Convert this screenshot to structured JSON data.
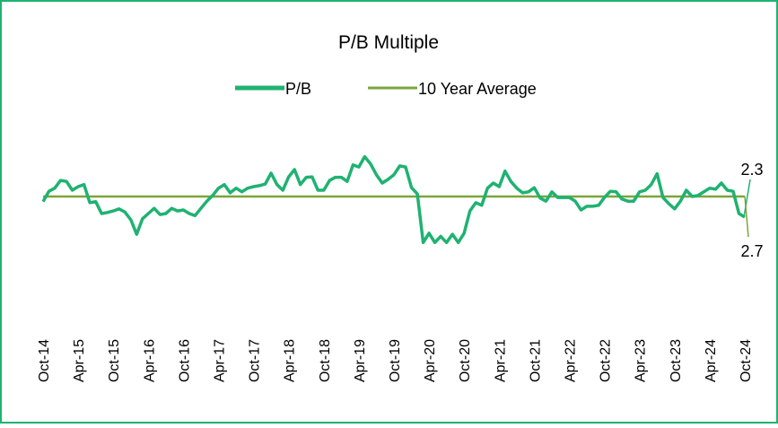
{
  "chart_data": {
    "type": "line",
    "title": "P/B Multiple",
    "categories": [
      "Oct-14",
      null,
      null,
      null,
      null,
      null,
      "Apr-15",
      null,
      null,
      null,
      null,
      null,
      "Oct-15",
      null,
      null,
      null,
      null,
      null,
      "Apr-16",
      null,
      null,
      null,
      null,
      null,
      "Oct-16",
      null,
      null,
      null,
      null,
      null,
      "Apr-17",
      null,
      null,
      null,
      null,
      null,
      "Oct-17",
      null,
      null,
      null,
      null,
      null,
      "Apr-18",
      null,
      null,
      null,
      null,
      null,
      "Oct-18",
      null,
      null,
      null,
      null,
      null,
      "Apr-19",
      null,
      null,
      null,
      null,
      null,
      "Oct-19",
      null,
      null,
      null,
      null,
      null,
      "Apr-20",
      null,
      null,
      null,
      null,
      null,
      "Oct-20",
      null,
      null,
      null,
      null,
      null,
      "Apr-21",
      null,
      null,
      null,
      null,
      null,
      "Oct-21",
      null,
      null,
      null,
      null,
      null,
      "Apr-22",
      null,
      null,
      null,
      null,
      null,
      "Oct-22",
      null,
      null,
      null,
      null,
      null,
      "Apr-23",
      null,
      null,
      null,
      null,
      null,
      "Oct-23",
      null,
      null,
      null,
      null,
      null,
      "Apr-24",
      null,
      null,
      null,
      null,
      null,
      "Oct-24"
    ],
    "series": [
      {
        "name": "P/B",
        "color": "#1fb271",
        "last_value_label": "2.3",
        "values": [
          2.6,
          2.8,
          2.86,
          3.01,
          2.99,
          2.82,
          2.89,
          2.93,
          2.58,
          2.6,
          2.37,
          2.39,
          2.42,
          2.46,
          2.4,
          2.25,
          1.97,
          2.27,
          2.37,
          2.47,
          2.35,
          2.37,
          2.47,
          2.42,
          2.44,
          2.37,
          2.33,
          2.47,
          2.61,
          2.72,
          2.86,
          2.93,
          2.77,
          2.86,
          2.79,
          2.86,
          2.89,
          2.91,
          2.94,
          3.15,
          2.93,
          2.82,
          3.08,
          3.22,
          2.93,
          3.07,
          3.08,
          2.82,
          2.82,
          3.01,
          3.07,
          3.07,
          2.99,
          3.31,
          3.27,
          3.47,
          3.33,
          3.12,
          2.96,
          3.03,
          3.12,
          3.29,
          3.27,
          2.87,
          2.75,
          1.81,
          1.99,
          1.81,
          1.93,
          1.81,
          1.97,
          1.81,
          1.99,
          2.42,
          2.58,
          2.53,
          2.86,
          2.96,
          2.89,
          3.19,
          2.99,
          2.86,
          2.77,
          2.79,
          2.87,
          2.67,
          2.61,
          2.79,
          2.68,
          2.68,
          2.68,
          2.61,
          2.44,
          2.51,
          2.51,
          2.53,
          2.68,
          2.8,
          2.79,
          2.65,
          2.61,
          2.61,
          2.79,
          2.82,
          2.93,
          3.14,
          2.68,
          2.56,
          2.46,
          2.61,
          2.82,
          2.7,
          2.72,
          2.79,
          2.86,
          2.84,
          2.96,
          2.82,
          2.8,
          2.37,
          2.3
        ]
      },
      {
        "name": "10 Year Average",
        "color": "#7aa63a",
        "last_value_label": "2.7",
        "values": [
          2.7,
          2.7,
          2.7,
          2.7,
          2.7,
          2.7,
          2.7,
          2.7,
          2.7,
          2.7,
          2.7,
          2.7,
          2.7,
          2.7,
          2.7,
          2.7,
          2.7,
          2.7,
          2.7,
          2.7,
          2.7,
          2.7,
          2.7,
          2.7,
          2.7,
          2.7,
          2.7,
          2.7,
          2.7,
          2.7,
          2.7,
          2.7,
          2.7,
          2.7,
          2.7,
          2.7,
          2.7,
          2.7,
          2.7,
          2.7,
          2.7,
          2.7,
          2.7,
          2.7,
          2.7,
          2.7,
          2.7,
          2.7,
          2.7,
          2.7,
          2.7,
          2.7,
          2.7,
          2.7,
          2.7,
          2.7,
          2.7,
          2.7,
          2.7,
          2.7,
          2.7,
          2.7,
          2.7,
          2.7,
          2.7,
          2.7,
          2.7,
          2.7,
          2.7,
          2.7,
          2.7,
          2.7,
          2.7,
          2.7,
          2.7,
          2.7,
          2.7,
          2.7,
          2.7,
          2.7,
          2.7,
          2.7,
          2.7,
          2.7,
          2.7,
          2.7,
          2.7,
          2.7,
          2.7,
          2.7,
          2.7,
          2.7,
          2.7,
          2.7,
          2.7,
          2.7,
          2.7,
          2.7,
          2.7,
          2.7,
          2.7,
          2.7,
          2.7,
          2.7,
          2.7,
          2.7,
          2.7,
          2.7,
          2.7,
          2.7,
          2.7,
          2.7,
          2.7,
          2.7,
          2.7,
          2.7,
          2.7,
          2.7,
          2.7,
          2.7,
          2.7
        ]
      }
    ],
    "ylim": [
      1,
      4
    ],
    "grid": false
  }
}
